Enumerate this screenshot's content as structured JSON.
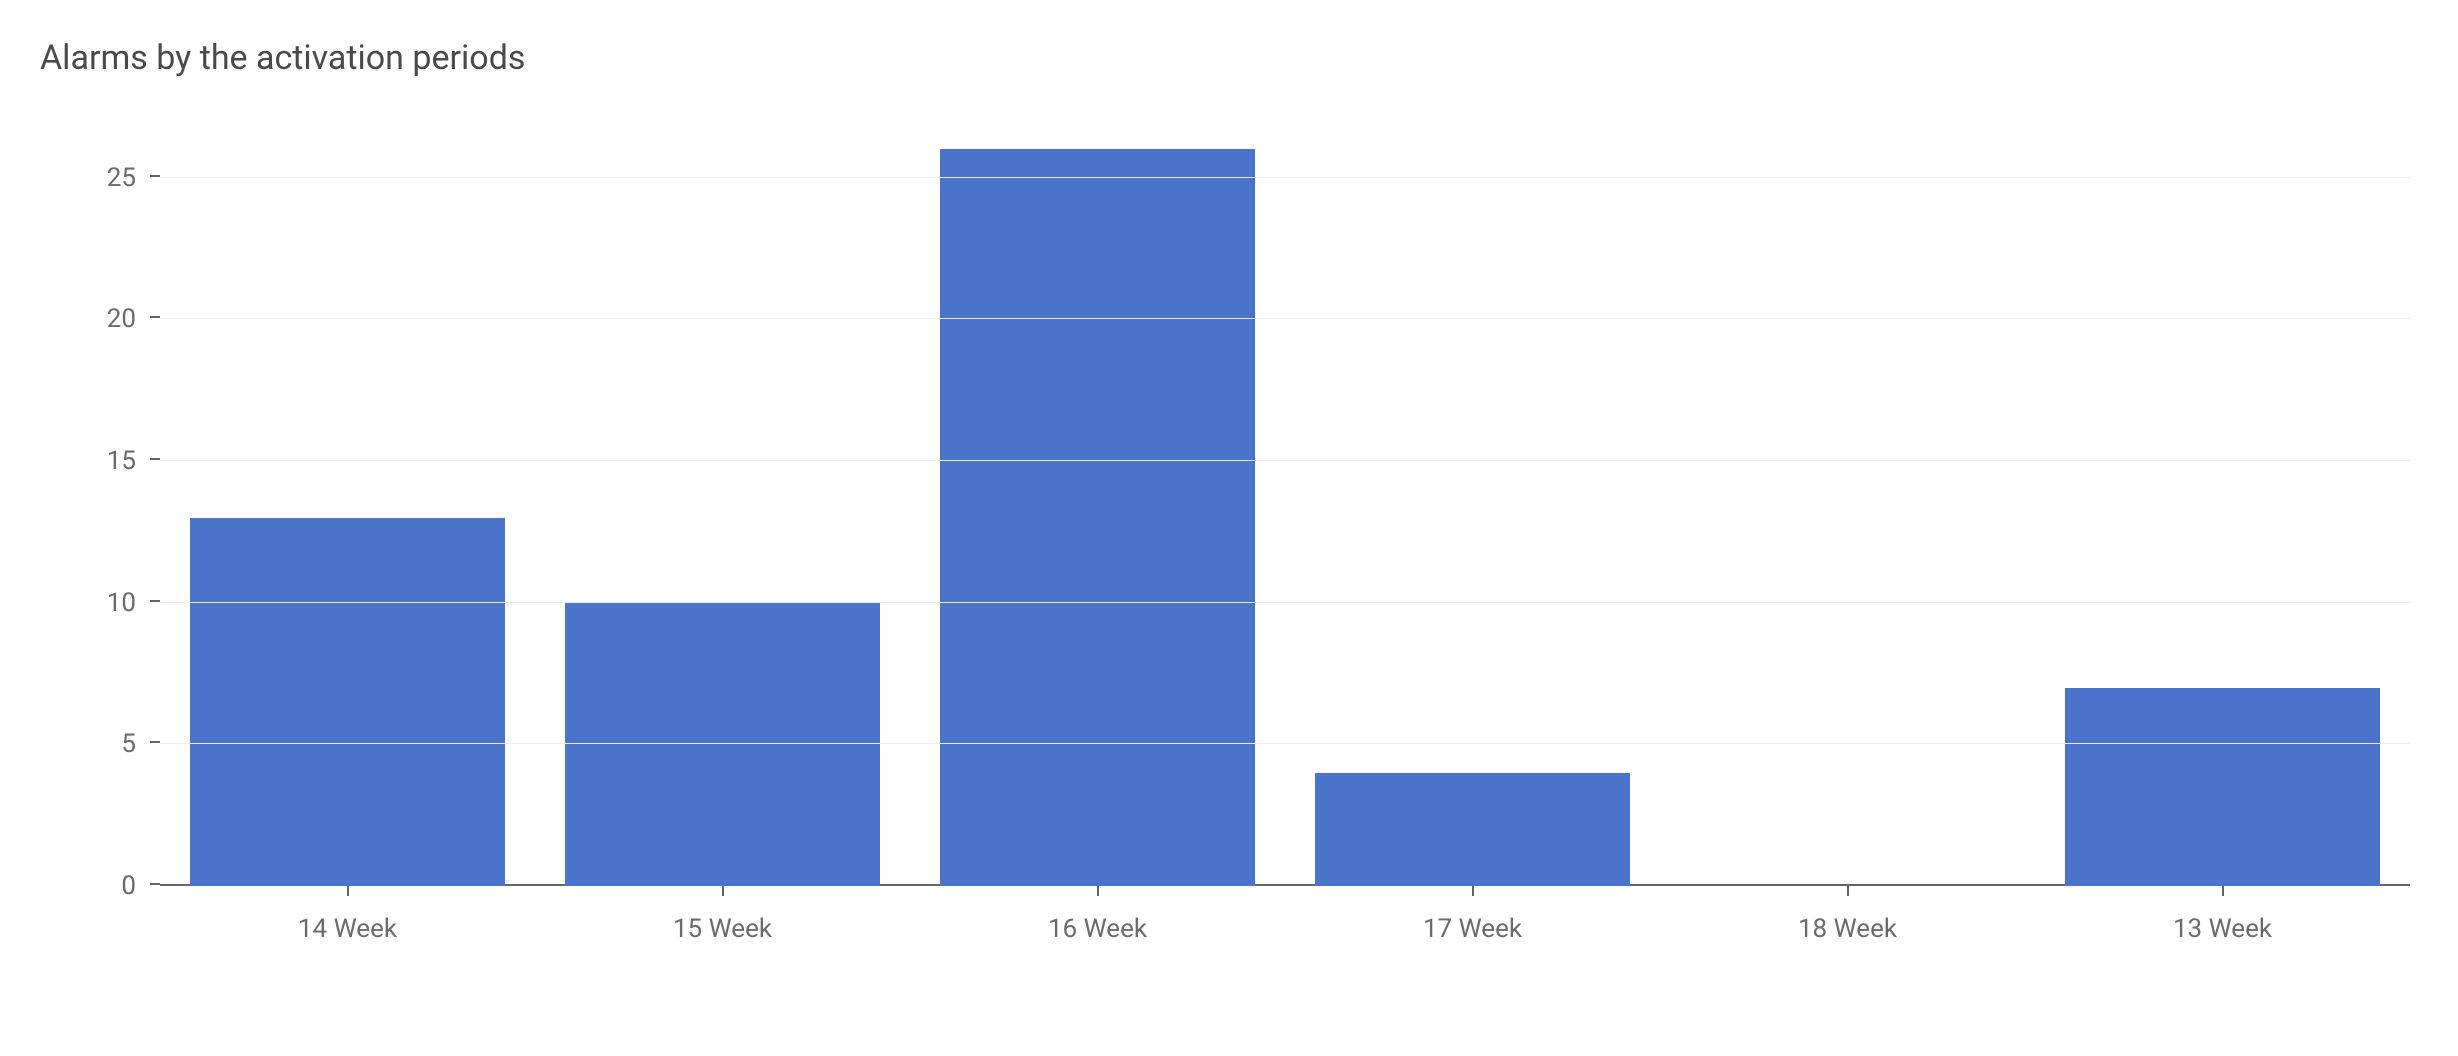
{
  "chart": {
    "type": "bar",
    "title": "Alarms by the activation periods",
    "title_fontsize": 34,
    "title_color": "#4a4a4a",
    "background_color": "#ffffff",
    "grid_color": "#ececec",
    "axis_color": "#666666",
    "tick_label_color": "#6b6b6b",
    "tick_label_fontsize": 26,
    "categories": [
      "14 Week",
      "15 Week",
      "16 Week",
      "17 Week",
      "18 Week",
      "13 Week"
    ],
    "values": [
      13,
      10,
      26,
      4,
      0,
      7
    ],
    "bar_colors": [
      "#4a74c9",
      "#4a74c9",
      "#4a74c9",
      "#4a74c9",
      "#4a74c9",
      "#4a74c9"
    ],
    "bar_width": 0.84,
    "ylim": [
      0,
      27.1
    ],
    "yticks": [
      0,
      5,
      10,
      15,
      20,
      25
    ]
  }
}
